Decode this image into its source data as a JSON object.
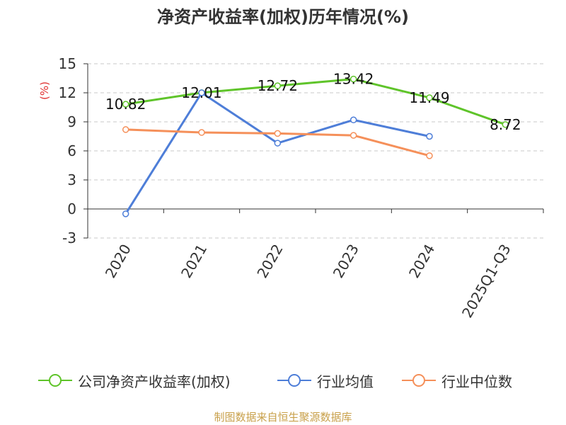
{
  "title": "净资产收益率(加权)历年情况(%)",
  "source": "制图数据来自恒生聚源数据库",
  "chart_data": {
    "type": "line",
    "title": "净资产收益率(加权)历年情况(%)",
    "ylabel": "(%)",
    "xlabel": "",
    "categories": [
      "2020",
      "2021",
      "2022",
      "2023",
      "2024",
      "2025Q1-Q3"
    ],
    "ylim": [
      -3,
      15
    ],
    "yticks": [
      -3,
      0,
      3,
      6,
      9,
      12,
      15
    ],
    "grid": true,
    "legend_position": "bottom",
    "series": [
      {
        "name": "公司净资产收益率(加权)",
        "color": "#5fc42a",
        "values": [
          10.82,
          12.01,
          12.72,
          13.42,
          11.49,
          8.72
        ],
        "labels": [
          "10.82",
          "12.01",
          "12.72",
          "13.42",
          "11.49",
          "8.72"
        ]
      },
      {
        "name": "行业均值",
        "color": "#4e7ed8",
        "values": [
          -0.5,
          12.0,
          6.8,
          9.2,
          7.5,
          null
        ]
      },
      {
        "name": "行业中位数",
        "color": "#f5905a",
        "values": [
          8.2,
          7.9,
          7.8,
          7.6,
          5.5,
          null
        ]
      }
    ]
  }
}
